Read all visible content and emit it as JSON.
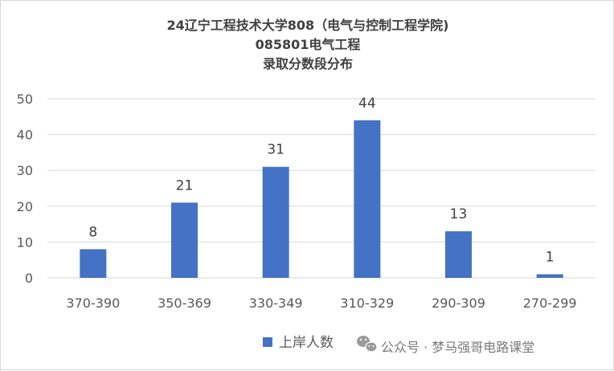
{
  "chart_data": {
    "type": "bar",
    "title_lines": [
      "24辽宁工程技术大学808（电气与控制工程学院)",
      "085801电气工程",
      "录取分数段分布"
    ],
    "categories": [
      "370-390",
      "350-369",
      "330-349",
      "310-329",
      "290-309",
      "270-299"
    ],
    "series": [
      {
        "name": "上岸人数",
        "values": [
          8,
          21,
          31,
          44,
          13,
          1
        ],
        "color": "#4472c4"
      }
    ],
    "ylim": [
      0,
      50
    ],
    "yticks": [
      0,
      10,
      20,
      30,
      40,
      50
    ],
    "grid": true,
    "legend_position": "bottom-center",
    "data_labels": true
  },
  "watermark": {
    "text": "公众号 · 梦马强哥电路课堂",
    "icon": "wechat-icon"
  },
  "colors": {
    "bar": "#4472c4",
    "grid": "#d9d9d9",
    "text": "#595959"
  }
}
